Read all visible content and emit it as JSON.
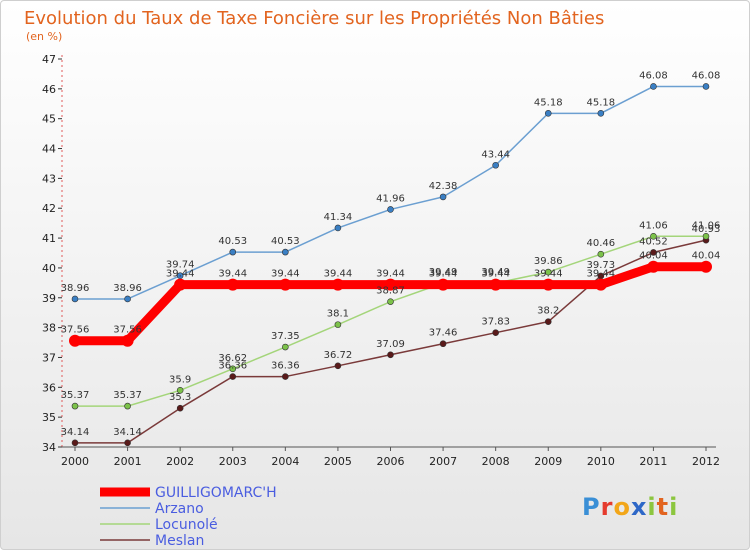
{
  "chart_data": {
    "type": "line",
    "title": "Evolution du Taux de Taxe Foncière sur les Propriétés Non Bâties",
    "subtitle": "(en %)",
    "xlabel": "",
    "ylabel": "",
    "x": [
      "2000",
      "2001",
      "2002",
      "2003",
      "2004",
      "2005",
      "2006",
      "2007",
      "2008",
      "2009",
      "2010",
      "2011",
      "2012"
    ],
    "ylim": [
      34,
      47
    ],
    "yticks": [
      34,
      35,
      36,
      37,
      38,
      39,
      40,
      41,
      42,
      43,
      44,
      45,
      46,
      47
    ],
    "grid": false,
    "legend_position": "bottom-left",
    "series": [
      {
        "name": "GUILLIGOMARC'H",
        "color": "#ff0000",
        "labels": [
          "37.56",
          "37.56",
          "39.44",
          "39.44",
          "39.44",
          "39.44",
          "39.44",
          "39.44",
          "39.44",
          "39.44",
          "39.44",
          "40.04",
          "40.04"
        ],
        "values": [
          37.56,
          37.56,
          39.44,
          39.44,
          39.44,
          39.44,
          39.44,
          39.44,
          39.44,
          39.44,
          39.44,
          40.04,
          40.04
        ]
      },
      {
        "name": "Arzano",
        "color": "#6b9fd1",
        "labels": [
          "38.96",
          "38.96",
          "39.74",
          "40.53",
          "40.53",
          "41.34",
          "41.96",
          "42.38",
          "43.44",
          "45.18",
          "45.18",
          "46.08",
          "46.08"
        ],
        "values": [
          38.96,
          38.96,
          39.74,
          40.53,
          40.53,
          41.34,
          41.96,
          42.38,
          43.44,
          45.18,
          45.18,
          46.08,
          46.08
        ]
      },
      {
        "name": "Locunolé",
        "color": "#a4d57a",
        "labels": [
          "35.37",
          "35.37",
          "35.9",
          "36.62",
          "37.35",
          "38.1",
          "38.87",
          "39.49",
          "39.49",
          "39.86",
          "40.46",
          "41.06",
          "41.06"
        ],
        "values": [
          35.37,
          35.37,
          35.9,
          36.62,
          37.35,
          38.1,
          38.87,
          39.49,
          39.49,
          39.86,
          40.46,
          41.06,
          41.06
        ]
      },
      {
        "name": "Meslan",
        "color": "#7a3a3a",
        "labels": [
          "34.14",
          "34.14",
          "35.3",
          "36.36",
          "36.36",
          "36.72",
          "37.09",
          "37.46",
          "37.83",
          "38.2",
          "39.73",
          "40.52",
          "40.93"
        ],
        "values": [
          34.14,
          34.14,
          35.3,
          36.36,
          36.36,
          36.72,
          37.09,
          37.46,
          37.83,
          38.2,
          39.73,
          40.52,
          40.93
        ]
      }
    ]
  },
  "branding": {
    "logo_text": "Proxiti"
  }
}
